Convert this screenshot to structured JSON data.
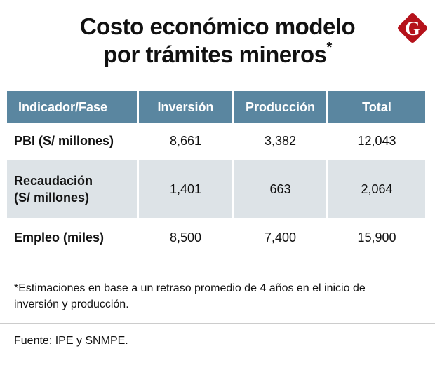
{
  "title": {
    "line1": "Costo económico modelo",
    "line2": "por trámites mineros",
    "mark": "*"
  },
  "logo": {
    "letter": "G",
    "color": "#b5121b"
  },
  "chart_data": {
    "type": "table",
    "columns": [
      "Indicador/Fase",
      "Inversión",
      "Producción",
      "Total"
    ],
    "rows": [
      {
        "label": "PBI (S/ millones)",
        "values": [
          "8,661",
          "3,382",
          "12,043"
        ]
      },
      {
        "label": "Recaudación (S/ millones)",
        "label_lines": [
          "Recaudación",
          "(S/ millones)"
        ],
        "values": [
          "1,401",
          "663",
          "2,064"
        ]
      },
      {
        "label": "Empleo (miles)",
        "values": [
          "8,500",
          "7,400",
          "15,900"
        ]
      }
    ],
    "header_color": "#5a86a0",
    "band_color": "#dde3e7"
  },
  "footnote": "*Estimaciones en base a un retraso promedio de 4 años en el inicio de inversión y producción.",
  "source": "Fuente: IPE y SNMPE."
}
